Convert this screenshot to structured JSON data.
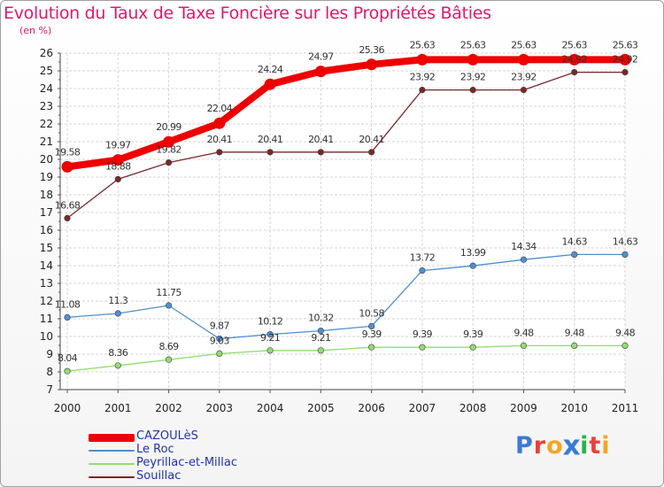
{
  "header": {
    "title": "Evolution du Taux de Taxe Foncière sur les Propriétés Bâties",
    "unit": "(en %)"
  },
  "logo": {
    "text": "Proxiti",
    "colors": [
      "#3a7bd5",
      "#e8423a",
      "#f2a623",
      "#3a7bd5",
      "#2bb34a",
      "#e8423a",
      "#f2a623"
    ]
  },
  "chart_data": {
    "type": "line",
    "title": "Evolution du Taux de Taxe Foncière sur les Propriétés Bâties",
    "ylabel": "(en %)",
    "xlabel": "",
    "x": [
      "2000",
      "2001",
      "2002",
      "2003",
      "2004",
      "2005",
      "2006",
      "2007",
      "2008",
      "2009",
      "2010",
      "2011"
    ],
    "ylim": [
      7,
      26
    ],
    "yticks": [
      7,
      8,
      9,
      10,
      11,
      12,
      13,
      14,
      15,
      16,
      17,
      18,
      19,
      20,
      21,
      22,
      23,
      24,
      25,
      26
    ],
    "grid": true,
    "legend_position": "bottom-left",
    "series": [
      {
        "name": "CAZOULèS",
        "color": "#ee0000",
        "values": [
          19.58,
          19.97,
          20.99,
          22.04,
          24.24,
          24.97,
          25.36,
          25.63,
          25.63,
          25.63,
          25.63,
          25.63
        ],
        "labels": [
          "19.58",
          "19.97",
          "20.99",
          "22.04",
          "24.24",
          "24.97",
          "25.36",
          "25.63",
          "25.63",
          "25.63",
          "25.63",
          "25.63"
        ]
      },
      {
        "name": "Le Roc",
        "color": "#4f8fd0",
        "values": [
          11.08,
          11.3,
          11.75,
          9.87,
          10.12,
          10.32,
          10.58,
          13.72,
          13.99,
          14.34,
          14.63,
          14.63
        ],
        "labels": [
          "11.08",
          "11.3",
          "11.75",
          "9.87",
          "10.12",
          "10.32",
          "10.58",
          "13.72",
          "13.99",
          "14.34",
          "14.63",
          "14.63"
        ]
      },
      {
        "name": "Peyrillac-et-Millac",
        "color": "#90dd70",
        "values": [
          8.04,
          8.36,
          8.69,
          9.03,
          9.21,
          9.21,
          9.39,
          9.39,
          9.39,
          9.48,
          9.48,
          9.48
        ],
        "labels": [
          "8.04",
          "8.36",
          "8.69",
          "9.03",
          "9.21",
          "9.21",
          "9.39",
          "9.39",
          "9.39",
          "9.48",
          "9.48",
          "9.48"
        ]
      },
      {
        "name": "Souillac",
        "color": "#7a2828",
        "values": [
          16.68,
          18.88,
          19.82,
          20.41,
          20.41,
          20.41,
          20.41,
          23.92,
          23.92,
          23.92,
          24.92,
          24.92
        ],
        "labels": [
          "16.68",
          "18.88",
          "19.82",
          "20.41",
          "20.41",
          "20.41",
          "20.41",
          "23.92",
          "23.92",
          "23.92",
          "24.92",
          "24.92"
        ]
      }
    ]
  }
}
